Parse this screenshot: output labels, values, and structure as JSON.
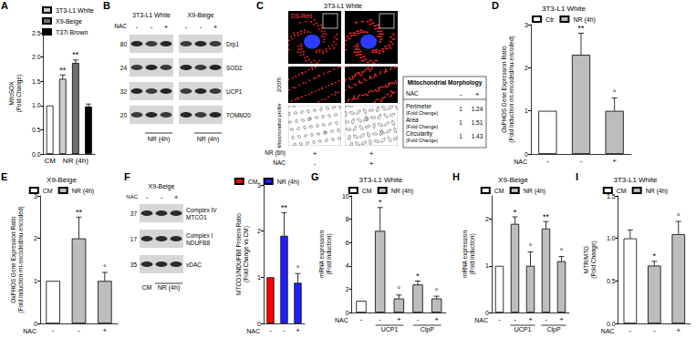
{
  "chart_data": [
    {
      "panel": "A",
      "type": "bar",
      "ylabel": [
        "MitoSOX",
        "(Fold Change)"
      ],
      "categories": [
        "CM",
        null,
        "NR (4h)",
        null
      ],
      "series": [
        {
          "color": "#ffffff",
          "values": [
            1,
            null,
            null,
            null
          ]
        },
        {
          "name": "3T3-L1 White",
          "color": "#cccccc",
          "values": [
            null,
            1.55,
            null,
            null
          ],
          "errors": [
            null,
            0.08,
            null,
            null
          ],
          "annotations": [
            null,
            "**",
            null,
            null
          ]
        },
        {
          "name": "X9-Beige",
          "color": "#6e6e6e",
          "values": [
            null,
            null,
            1.88,
            null
          ],
          "errors": [
            null,
            null,
            0.06,
            null
          ],
          "annotations": [
            null,
            null,
            "**",
            null
          ]
        },
        {
          "name": "T37i Brown",
          "color": "#000000",
          "values": [
            null,
            null,
            null,
            0.98
          ],
          "errors": [
            null,
            null,
            null,
            0.05
          ]
        }
      ],
      "ylim": [
        0,
        2.5
      ],
      "yticks": [
        {
          "value": 0,
          "label": "0.0"
        },
        {
          "value": 0.5,
          "label": "0.5"
        },
        {
          "value": 1,
          "label": "1.0"
        },
        {
          "value": 1.5,
          "label": "1.5"
        },
        {
          "value": 2,
          "label": "2.0"
        },
        {
          "value": 2.5,
          "label": "2.5"
        }
      ],
      "grid": false,
      "legend": "top"
    },
    {
      "panel": "D",
      "type": "bar",
      "title": "3T3-L1 White",
      "ylabel": [
        "OxPHOS Gene Expression Ratio",
        "(Fold Induction mt-encoded/nu-encoded)"
      ],
      "xlabel": "NAC",
      "categories": [
        "-",
        "-",
        "+"
      ],
      "series": [
        {
          "name": "Ctr",
          "color": "#ffffff",
          "values": [
            1,
            null,
            null
          ]
        },
        {
          "name": "NR (4h)",
          "color": "#bdbdbd",
          "values": [
            null,
            2.3,
            1.0
          ],
          "errors": [
            null,
            0.5,
            0.3
          ],
          "annotations": [
            null,
            "**",
            "°"
          ]
        }
      ],
      "ylim": [
        0,
        3
      ],
      "yticks": [
        0,
        1,
        2,
        3
      ],
      "grid": false,
      "legend": "top"
    },
    {
      "panel": "E",
      "type": "bar",
      "title": "X9-Beige",
      "ylabel": [
        "OxPHOS Gene Expression Ratio",
        "(Fold Induction mt-encoded/nu-encoded)"
      ],
      "xlabel": "NAC",
      "categories": [
        "-",
        "-",
        "+"
      ],
      "series": [
        {
          "name": "CM",
          "color": "#ffffff",
          "values": [
            1,
            null,
            null
          ]
        },
        {
          "name": "NR (4h)",
          "color": "#bdbdbd",
          "values": [
            null,
            2.0,
            1.0
          ],
          "errors": [
            null,
            0.5,
            0.2
          ],
          "annotations": [
            null,
            "**",
            "°"
          ]
        }
      ],
      "ylim": [
        0,
        3
      ],
      "yticks": [
        0,
        1,
        2,
        3
      ],
      "grid": false,
      "legend": "top"
    },
    {
      "type": "bar",
      "ylabel": [
        "MTCO1/NDUFB8 Protein Ratio",
        "(Fold Change vs CM)"
      ],
      "xlabel": "NAC",
      "categories": [
        "-",
        "-",
        "+"
      ],
      "series": [
        {
          "name": "CM",
          "color": "#ff0000",
          "values": [
            1,
            null,
            null
          ]
        },
        {
          "name": "NR (4h)",
          "color": "#1f1fff",
          "values": [
            null,
            1.9,
            0.88
          ],
          "errors": [
            null,
            0.5,
            0.2
          ],
          "annotations": [
            null,
            "**",
            "°"
          ]
        }
      ],
      "ylim": [
        0,
        3
      ],
      "yticks": [
        0,
        1,
        2,
        3
      ],
      "grid": false,
      "legend": "top"
    },
    {
      "panel": "G",
      "type": "bar",
      "title": "3T3-L1 White",
      "ylabel": [
        "mRNA expression",
        "(Fold Induction)"
      ],
      "xlabel": "NAC",
      "categories": [
        "-",
        "-",
        "+",
        "-",
        "+"
      ],
      "series": [
        {
          "name": "CM",
          "color": "#ffffff",
          "values": [
            1,
            null,
            null,
            null,
            null
          ]
        },
        {
          "name": "NR (4h)",
          "color": "#bdbdbd",
          "values": [
            null,
            7,
            1.2,
            2.4,
            1.2
          ],
          "errors": [
            null,
            2,
            0.3,
            0.3,
            0.2
          ],
          "annotations": [
            null,
            "*",
            "°",
            "*",
            "°"
          ]
        }
      ],
      "groups": [
        {
          "label": "UCP1",
          "from": 1,
          "to": 2
        },
        {
          "label": "ClpP",
          "from": 3,
          "to": 4
        }
      ],
      "ylim": [
        0,
        10
      ],
      "yticks": [
        0,
        2,
        4,
        6,
        8,
        10
      ],
      "grid": false,
      "legend": "top"
    },
    {
      "panel": "H",
      "type": "bar",
      "title": "X9-Beige",
      "ylabel": [
        "mRNA expression",
        "(Fold Induction)"
      ],
      "xlabel": "NAC",
      "categories": [
        "-",
        "-",
        "+",
        "-",
        "+"
      ],
      "series": [
        {
          "name": "CM",
          "color": "#ffffff",
          "values": [
            1,
            null,
            null,
            null,
            null
          ]
        },
        {
          "name": "NR (4h)",
          "color": "#bdbdbd",
          "values": [
            null,
            1.9,
            1.0,
            1.8,
            1.1
          ],
          "errors": [
            null,
            0.15,
            0.3,
            0.15,
            0.1
          ],
          "annotations": [
            null,
            "*",
            "°",
            "**",
            "°"
          ]
        }
      ],
      "groups": [
        {
          "label": "UCP1",
          "from": 1,
          "to": 2
        },
        {
          "label": "ClpP",
          "from": 3,
          "to": 4
        }
      ],
      "ylim": [
        0,
        2.5
      ],
      "yticks": [
        0,
        1,
        2
      ],
      "grid": false,
      "legend": "top"
    },
    {
      "panel": "I",
      "type": "bar",
      "title": "3T3-L1 White",
      "ylabel": [
        "MTR/MTG",
        "(Fold Change)"
      ],
      "xlabel": "NAC",
      "categories": [
        "-",
        "-",
        "+"
      ],
      "series": [
        {
          "name": "CM",
          "color": "#ffffff",
          "values": [
            1.0,
            null,
            null
          ],
          "errors": [
            0.1,
            null,
            null
          ]
        },
        {
          "name": "NR (4h)",
          "color": "#bdbdbd",
          "values": [
            null,
            0.68,
            1.05
          ],
          "errors": [
            null,
            0.05,
            0.15
          ],
          "annotations": [
            null,
            "*",
            "°"
          ]
        }
      ],
      "ylim": [
        0,
        1.5
      ],
      "yticks": [
        {
          "value": 0,
          "label": "0.0"
        },
        {
          "value": 0.5,
          "label": "0.5"
        },
        {
          "value": 1,
          "label": "1.0"
        },
        {
          "value": 1.5,
          "label": "1.5"
        }
      ],
      "grid": false,
      "legend": "top"
    }
  ],
  "panel_B": {
    "panel": "B",
    "groups": [
      {
        "title": "3T3-L1 White",
        "nac": [
          "-",
          "-",
          "+"
        ]
      },
      {
        "title": "X9-Beige",
        "nac": [
          "-",
          "-",
          "+"
        ]
      }
    ],
    "row_label": "NAC",
    "treatment": "NR (4h)",
    "bands": [
      {
        "marker": 80,
        "label": "Drp1"
      },
      {
        "marker": 24,
        "label": "SOD2"
      },
      {
        "marker": 32,
        "label": "UCP1"
      },
      {
        "marker": 20,
        "label": "TOMM20"
      }
    ]
  },
  "panel_C": {
    "panel": "C",
    "title": "3T3-L1 White",
    "channel": "DS-Red",
    "row_labels": [
      "zoom",
      "Mitochondrial profile"
    ],
    "conditions": [
      {
        "label": "NR (6h)",
        "values": [
          "+",
          "+"
        ]
      },
      {
        "label": "NAC",
        "values": [
          "-",
          "+"
        ]
      }
    ],
    "table": {
      "title": "Mitochondrial Morphology",
      "header": [
        "NAC",
        "-",
        "+"
      ],
      "rows": [
        {
          "label": "Perimeter",
          "unit": "(Fold Change)",
          "values": [
            1,
            1.24
          ]
        },
        {
          "label": "Area",
          "unit": "(Fold Change)",
          "values": [
            1,
            1.51
          ]
        },
        {
          "label": "Circularity",
          "unit": "(Fold Change)",
          "values": [
            1,
            1.43
          ]
        }
      ]
    }
  },
  "panel_F_blot": {
    "panel": "F",
    "title": "X9-Beige",
    "row_label": "NAC",
    "nac": [
      "-",
      "-",
      "+"
    ],
    "bands": [
      {
        "marker": 37,
        "label": "Complex IV",
        "sublabel": "MTCO1"
      },
      {
        "marker": 17,
        "label": "Complex I",
        "sublabel": "NDUFB8"
      },
      {
        "marker": 35,
        "label": "vDAC"
      }
    ],
    "conditions": [
      "CM",
      "NR (4h)"
    ]
  }
}
